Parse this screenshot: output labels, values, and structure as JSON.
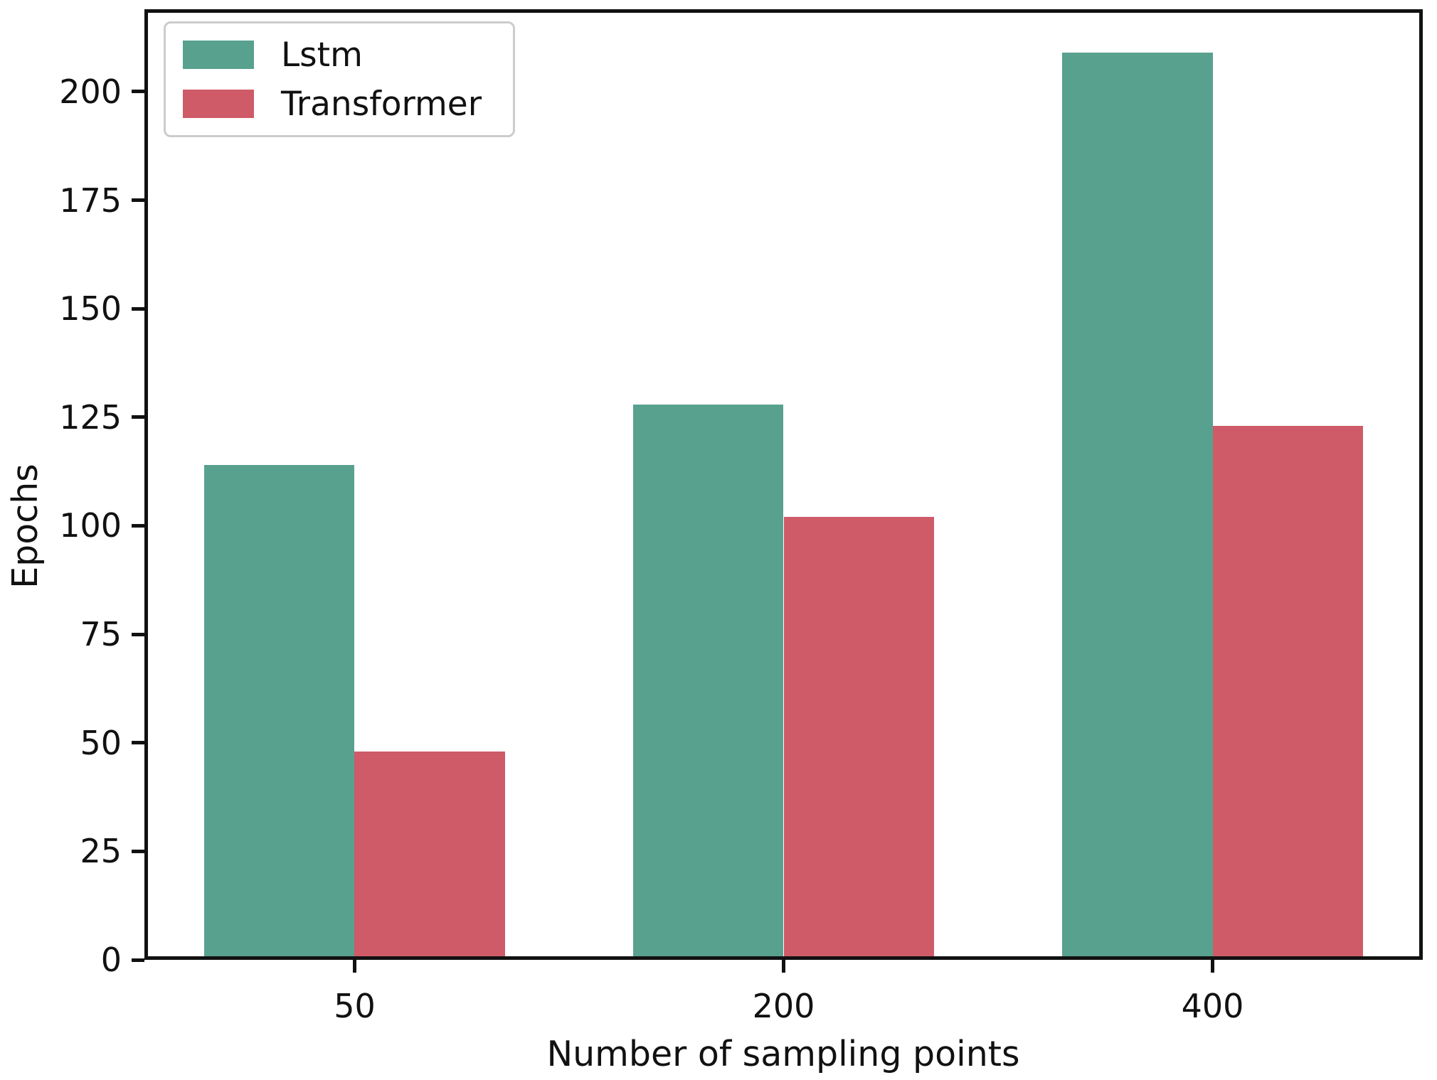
{
  "chart_data": {
    "type": "bar",
    "categories": [
      "50",
      "200",
      "400"
    ],
    "series": [
      {
        "name": "Lstm",
        "color": "#58a18e",
        "values": [
          114,
          128,
          209
        ]
      },
      {
        "name": "Transformer",
        "color": "#ce5b67",
        "values": [
          48,
          102,
          123
        ]
      }
    ],
    "xlabel": "Number of sampling points",
    "ylabel": "Epochs",
    "yticks": [
      0,
      25,
      50,
      75,
      100,
      125,
      150,
      175,
      200
    ],
    "ylim": [
      0,
      219
    ],
    "xlim": [
      -0.49,
      2.49
    ],
    "bar_width_ratio": 0.35,
    "grid": false,
    "legend_position": "upper-left",
    "spine_color": "#111111",
    "background_color": "#ffffff"
  }
}
